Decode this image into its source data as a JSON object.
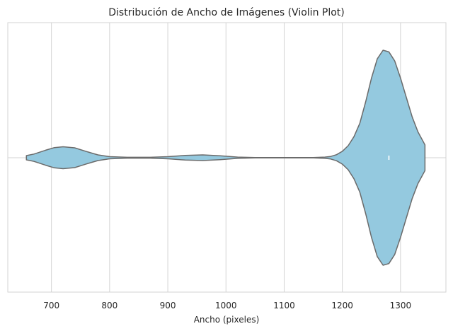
{
  "chart_data": {
    "type": "violin",
    "title": "Distribución de Ancho de Imágenes (Violin Plot)",
    "xlabel": "Ancho (pixeles)",
    "ylabel": "",
    "xlim": [
      625,
      1378
    ],
    "xticks": [
      700,
      800,
      900,
      1000,
      1100,
      1200,
      1300
    ],
    "grid": true,
    "orientation": "horizontal",
    "range": [
      657,
      1342
    ],
    "median": 1280,
    "quartiles": [
      1279,
      1281
    ],
    "density": {
      "x": [
        657,
        670,
        690,
        705,
        720,
        740,
        760,
        780,
        800,
        830,
        870,
        900,
        930,
        960,
        990,
        1020,
        1050,
        1100,
        1150,
        1170,
        1180,
        1190,
        1200,
        1210,
        1220,
        1230,
        1240,
        1250,
        1260,
        1270,
        1280,
        1290,
        1300,
        1310,
        1320,
        1330,
        1342
      ],
      "y": [
        0.02,
        0.034,
        0.07,
        0.094,
        0.102,
        0.092,
        0.058,
        0.026,
        0.01,
        0.004,
        0.004,
        0.01,
        0.022,
        0.026,
        0.018,
        0.006,
        0.002,
        0.001,
        0.002,
        0.006,
        0.012,
        0.028,
        0.06,
        0.112,
        0.196,
        0.32,
        0.52,
        0.74,
        0.92,
        1.0,
        0.985,
        0.9,
        0.74,
        0.56,
        0.38,
        0.24,
        0.12
      ]
    },
    "colors": {
      "fill": "#94c9df",
      "edge": "#6b6b6b",
      "grid": "#d3d3d3",
      "median": "#ffffff"
    }
  }
}
